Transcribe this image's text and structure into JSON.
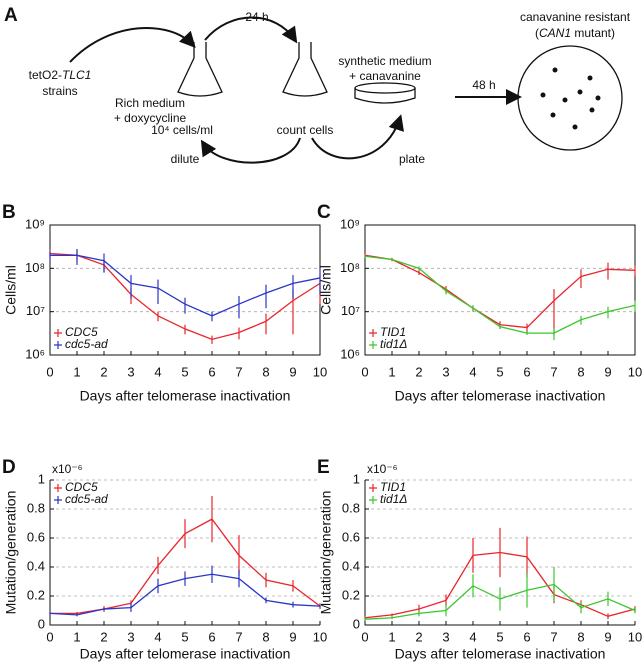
{
  "diagram": {
    "panel": "A",
    "strain": {
      "parts": [
        "tetO2-",
        "TLC1"
      ],
      "line2": "strains"
    },
    "time1": "24 h",
    "rich": [
      "Rich medium",
      "+ doxycycline"
    ],
    "density": "10⁴ cells/ml",
    "count": "count cells",
    "dilute": "dilute",
    "synthetic": [
      "synthetic medium",
      "+ canavanine"
    ],
    "plate": "plate",
    "time2": "48 h",
    "resistant": {
      "line1": "canavanine resistant",
      "parts": [
        "(",
        "CAN1",
        " mutant)"
      ]
    }
  },
  "chart_data": [
    {
      "panel": "B",
      "type": "line",
      "log_scale": true,
      "grid": true,
      "legend_loc": "lower left",
      "xlabel": "Days after telomerase inactivation",
      "ylabel": "Cells/ml",
      "x": [
        0,
        1,
        2,
        3,
        4,
        5,
        6,
        7,
        8,
        9,
        10
      ],
      "xlim": [
        0,
        10
      ],
      "xticks": [
        0,
        1,
        2,
        3,
        4,
        5,
        6,
        7,
        8,
        9,
        10
      ],
      "ylim": [
        1000000,
        1000000000
      ],
      "yticks": [
        {
          "value": 1000000,
          "label": "10⁶"
        },
        {
          "value": 10000000,
          "label": "10⁷"
        },
        {
          "value": 100000000,
          "label": "10⁸"
        },
        {
          "value": 1000000000,
          "label": "10⁹"
        }
      ],
      "series": [
        {
          "name": "CDC5",
          "color": "#e8262c",
          "values": [
            220000000,
            200000000,
            120000000,
            25000000,
            8000000,
            4000000,
            2300000,
            3300000,
            6000000,
            18000000,
            45000000
          ],
          "errors": [
            50000000,
            50000000,
            40000000,
            10000000,
            2000000,
            1000000,
            500000,
            1000000,
            3000000,
            15000000,
            30000000
          ]
        },
        {
          "name": "cdc5-ad",
          "color": "#2b35c8",
          "values": [
            200000000,
            200000000,
            150000000,
            45000000,
            35000000,
            15000000,
            8000000,
            15000000,
            27000000,
            45000000,
            60000000
          ],
          "errors": [
            50000000,
            80000000,
            70000000,
            25000000,
            20000000,
            6000000,
            2000000,
            8000000,
            15000000,
            25000000,
            35000000
          ]
        }
      ]
    },
    {
      "panel": "C",
      "type": "line",
      "log_scale": true,
      "grid": true,
      "legend_loc": "lower left",
      "xlabel": "Days after telomerase inactivation",
      "ylabel": "Cells/ml",
      "x": [
        0,
        1,
        2,
        3,
        4,
        5,
        6,
        7,
        8,
        9,
        10
      ],
      "xlim": [
        0,
        10
      ],
      "xticks": [
        0,
        1,
        2,
        3,
        4,
        5,
        6,
        7,
        8,
        9,
        10
      ],
      "ylim": [
        1000000,
        1000000000
      ],
      "yticks": [
        {
          "value": 1000000,
          "label": "10⁶"
        },
        {
          "value": 10000000,
          "label": "10⁷"
        },
        {
          "value": 100000000,
          "label": "10⁸"
        },
        {
          "value": 1000000000,
          "label": "10⁹"
        }
      ],
      "series": [
        {
          "name": "TID1",
          "color": "#e8262c",
          "values": [
            200000000,
            160000000,
            80000000,
            33000000,
            12000000,
            5000000,
            4300000,
            18000000,
            65000000,
            95000000,
            90000000
          ],
          "errors": [
            20000000,
            15000000,
            10000000,
            6000000,
            2000000,
            1000000,
            1000000,
            15000000,
            30000000,
            40000000,
            25000000
          ]
        },
        {
          "name": "tid1Δ",
          "color": "#3cc62e",
          "values": [
            190000000,
            160000000,
            100000000,
            30000000,
            12000000,
            4500000,
            3200000,
            3200000,
            6500000,
            10000000,
            14000000
          ],
          "errors": [
            10000000,
            10000000,
            10000000,
            5000000,
            2000000,
            500000,
            300000,
            1000000,
            1500000,
            3000000,
            4000000
          ]
        }
      ]
    },
    {
      "panel": "D",
      "type": "line",
      "log_scale": false,
      "grid": true,
      "legend_loc": "upper left",
      "xlabel": "Days after telomerase inactivation",
      "ylabel": "Mutation/generation",
      "annotation": "x10⁻⁶",
      "x": [
        0,
        1,
        2,
        3,
        4,
        5,
        6,
        7,
        8,
        9,
        10
      ],
      "xlim": [
        0,
        10
      ],
      "xticks": [
        0,
        1,
        2,
        3,
        4,
        5,
        6,
        7,
        8,
        9,
        10
      ],
      "ylim": [
        0,
        1
      ],
      "yticks": [
        0,
        0.2,
        0.4,
        0.6,
        0.8,
        1
      ],
      "series": [
        {
          "name": "CDC5",
          "color": "#e8262c",
          "values": [
            0.08,
            0.08,
            0.11,
            0.15,
            0.41,
            0.63,
            0.73,
            0.48,
            0.31,
            0.27,
            0.13
          ],
          "errors": [
            0.01,
            0.01,
            0.02,
            0.02,
            0.06,
            0.1,
            0.16,
            0.14,
            0.05,
            0.04,
            0.02
          ]
        },
        {
          "name": "cdc5-ad",
          "color": "#2b35c8",
          "values": [
            0.08,
            0.07,
            0.11,
            0.12,
            0.27,
            0.32,
            0.35,
            0.32,
            0.17,
            0.14,
            0.13
          ],
          "errors": [
            0.01,
            0.01,
            0.01,
            0.03,
            0.05,
            0.05,
            0.06,
            0.06,
            0.02,
            0.02,
            0.01
          ]
        }
      ]
    },
    {
      "panel": "E",
      "type": "line",
      "log_scale": false,
      "grid": true,
      "legend_loc": "upper left",
      "xlabel": "Days after telomerase inactivation",
      "ylabel": "Mutation/generation",
      "annotation": "x10⁻⁶",
      "x": [
        0,
        1,
        2,
        3,
        4,
        5,
        6,
        7,
        8,
        9,
        10
      ],
      "xlim": [
        0,
        10
      ],
      "xticks": [
        0,
        1,
        2,
        3,
        4,
        5,
        6,
        7,
        8,
        9,
        10
      ],
      "ylim": [
        0,
        1
      ],
      "yticks": [
        0,
        0.2,
        0.4,
        0.6,
        0.8,
        1
      ],
      "series": [
        {
          "name": "TID1",
          "color": "#e8262c",
          "values": [
            0.05,
            0.07,
            0.11,
            0.17,
            0.48,
            0.5,
            0.47,
            0.21,
            0.14,
            0.06,
            0.11
          ],
          "errors": [
            0.01,
            0.01,
            0.03,
            0.04,
            0.12,
            0.17,
            0.14,
            0.06,
            0.03,
            0.02,
            0.02
          ]
        },
        {
          "name": "tid1Δ",
          "color": "#3cc62e",
          "values": [
            0.04,
            0.05,
            0.08,
            0.1,
            0.27,
            0.18,
            0.24,
            0.28,
            0.12,
            0.18,
            0.1
          ],
          "errors": [
            0.01,
            0.01,
            0.02,
            0.04,
            0.08,
            0.08,
            0.12,
            0.12,
            0.04,
            0.05,
            0.02
          ]
        }
      ]
    }
  ]
}
